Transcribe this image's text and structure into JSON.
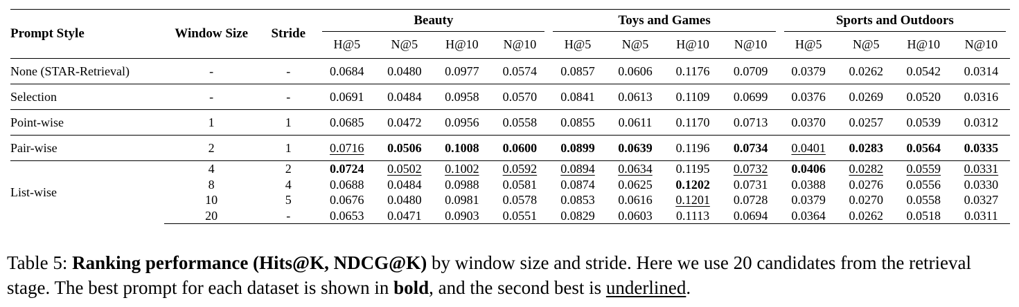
{
  "table": {
    "headers": {
      "prompt_style": "Prompt Style",
      "window_size": "Window Size",
      "stride": "Stride",
      "datasets": [
        "Beauty",
        "Toys and Games",
        "Sports and Outdoors"
      ],
      "metrics": [
        "H@5",
        "N@5",
        "H@10",
        "N@10"
      ]
    },
    "rows": [
      {
        "style": "None (STAR-Retrieval)",
        "window": "-",
        "stride": "-",
        "values": [
          "0.0684",
          "0.0480",
          "0.0977",
          "0.0574",
          "0.0857",
          "0.0606",
          "0.1176",
          "0.0709",
          "0.0379",
          "0.0262",
          "0.0542",
          "0.0314"
        ],
        "format": [
          "",
          "",
          "",
          "",
          "",
          "",
          "",
          "",
          "",
          "",
          "",
          ""
        ]
      },
      {
        "style": "Selection",
        "window": "-",
        "stride": "-",
        "values": [
          "0.0691",
          "0.0484",
          "0.0958",
          "0.0570",
          "0.0841",
          "0.0613",
          "0.1109",
          "0.0699",
          "0.0376",
          "0.0269",
          "0.0520",
          "0.0316"
        ],
        "format": [
          "",
          "",
          "",
          "",
          "",
          "",
          "",
          "",
          "",
          "",
          "",
          ""
        ]
      },
      {
        "style": "Point-wise",
        "window": "1",
        "stride": "1",
        "values": [
          "0.0685",
          "0.0472",
          "0.0956",
          "0.0558",
          "0.0855",
          "0.0611",
          "0.1170",
          "0.0713",
          "0.0370",
          "0.0257",
          "0.0539",
          "0.0312"
        ],
        "format": [
          "",
          "",
          "",
          "",
          "",
          "",
          "",
          "",
          "",
          "",
          "",
          ""
        ]
      },
      {
        "style": "Pair-wise",
        "window": "2",
        "stride": "1",
        "values": [
          "0.0716",
          "0.0506",
          "0.1008",
          "0.0600",
          "0.0899",
          "0.0639",
          "0.1196",
          "0.0734",
          "0.0401",
          "0.0283",
          "0.0564",
          "0.0335"
        ],
        "format": [
          "underline",
          "bold",
          "bold",
          "bold",
          "bold",
          "bold",
          "",
          "bold",
          "underline",
          "bold",
          "bold",
          "bold"
        ]
      }
    ],
    "list_wise": {
      "style": "List-wise",
      "rows": [
        {
          "window": "4",
          "stride": "2",
          "values": [
            "0.0724",
            "0.0502",
            "0.1002",
            "0.0592",
            "0.0894",
            "0.0634",
            "0.1195",
            "0.0732",
            "0.0406",
            "0.0282",
            "0.0559",
            "0.0331"
          ],
          "format": [
            "bold",
            "underline",
            "underline",
            "underline",
            "underline",
            "underline",
            "",
            "underline",
            "bold",
            "underline",
            "underline",
            "underline"
          ]
        },
        {
          "window": "8",
          "stride": "4",
          "values": [
            "0.0688",
            "0.0484",
            "0.0988",
            "0.0581",
            "0.0874",
            "0.0625",
            "0.1202",
            "0.0731",
            "0.0388",
            "0.0276",
            "0.0556",
            "0.0330"
          ],
          "format": [
            "",
            "",
            "",
            "",
            "",
            "",
            "bold",
            "",
            "",
            "",
            "",
            ""
          ]
        },
        {
          "window": "10",
          "stride": "5",
          "values": [
            "0.0676",
            "0.0480",
            "0.0981",
            "0.0578",
            "0.0853",
            "0.0616",
            "0.1201",
            "0.0728",
            "0.0379",
            "0.0270",
            "0.0558",
            "0.0327"
          ],
          "format": [
            "",
            "",
            "",
            "",
            "",
            "",
            "underline",
            "",
            "",
            "",
            "",
            ""
          ]
        },
        {
          "window": "20",
          "stride": "-",
          "values": [
            "0.0653",
            "0.0471",
            "0.0903",
            "0.0551",
            "0.0829",
            "0.0603",
            "0.1113",
            "0.0694",
            "0.0364",
            "0.0262",
            "0.0518",
            "0.0311"
          ],
          "format": [
            "",
            "",
            "",
            "",
            "",
            "",
            "",
            "",
            "",
            "",
            "",
            ""
          ]
        }
      ]
    }
  },
  "caption": {
    "prefix": "Table 5: ",
    "bold_title": "Ranking performance (Hits@K, NDCG@K)",
    "text1": " by window size and stride. Here we use 20 candidates from the retrieval stage. The best prompt for each dataset is shown in ",
    "bold_word": "bold",
    "text2": ", and the second best is ",
    "underlined_word": "underlined",
    "text3": "."
  }
}
